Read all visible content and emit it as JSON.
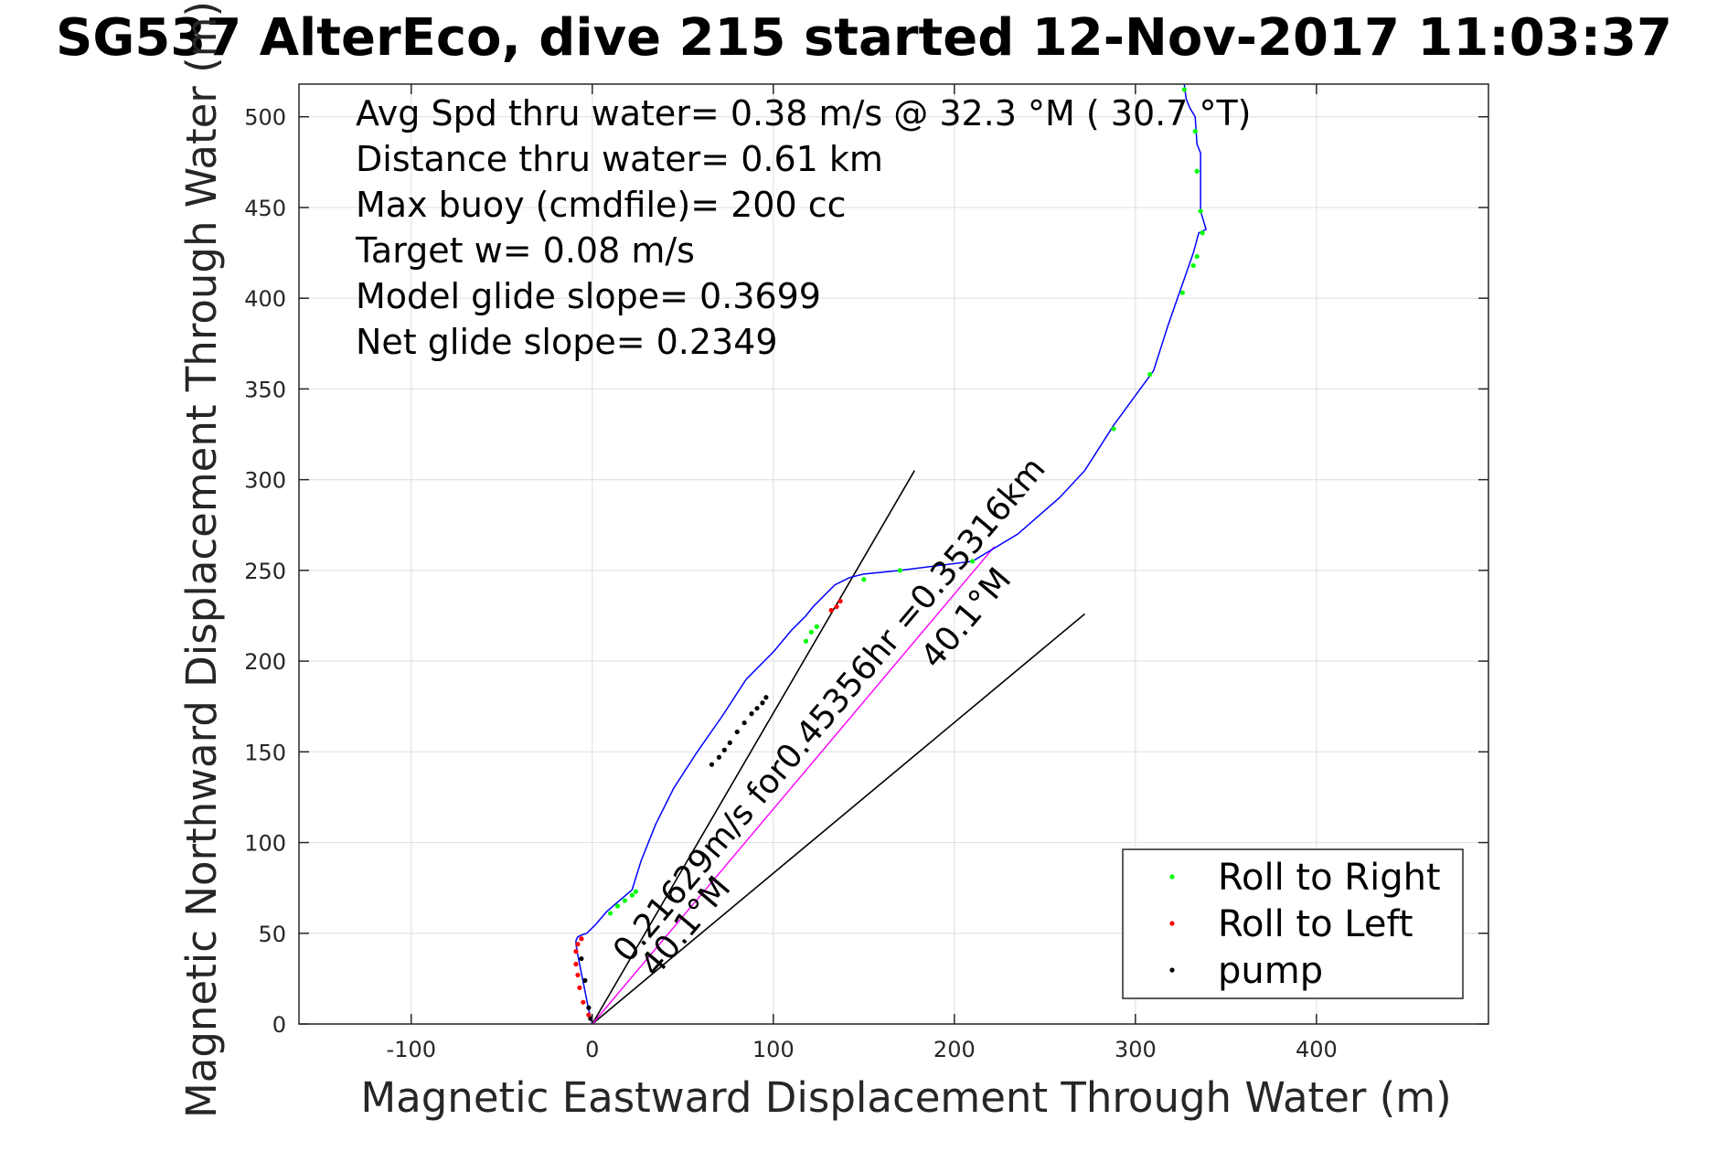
{
  "chart_data": {
    "type": "scatter",
    "title": "SG537 AlterEco, dive 215 started 12-Nov-2017 11:03:37",
    "xlabel": "Magnetic Eastward Displacement Through Water (m)",
    "ylabel": "Magnetic Northward Displacement Through Water (m)",
    "xlim": [
      -162,
      495
    ],
    "ylim": [
      0,
      518
    ],
    "xticks": [
      -100,
      0,
      100,
      200,
      300,
      400
    ],
    "xtick_labels": [
      "-100",
      "0",
      "100",
      "200",
      "300",
      "400"
    ],
    "yticks": [
      0,
      50,
      100,
      150,
      200,
      250,
      300,
      350,
      400,
      450,
      500
    ],
    "ytick_labels": [
      "0",
      "50",
      "100",
      "150",
      "200",
      "250",
      "300",
      "350",
      "400",
      "450",
      "500"
    ],
    "grid": true,
    "info_text": [
      "Avg Spd thru water=  0.38 m/s @  32.3 °M ( 30.7 °T)",
      "Distance thru water=  0.61 km",
      "Max buoy (cmdfile)= 200 cc",
      "Target w= 0.08 m/s",
      "Model glide slope= 0.3699",
      "Net glide slope= 0.2349"
    ],
    "legend": {
      "position": "bottom-right",
      "entries": [
        {
          "label": "Roll to Right",
          "color": "#00ff00"
        },
        {
          "label": "Roll to Left",
          "color": "#ff0000"
        },
        {
          "label": "pump",
          "color": "#000000"
        }
      ]
    },
    "track": {
      "name": "glider track",
      "color": "#0000ff",
      "x": [
        0,
        -2,
        -4,
        -6,
        -8,
        -9,
        -9,
        -8,
        -6,
        -3,
        2,
        8,
        15,
        22,
        27,
        35,
        45,
        58,
        72,
        85,
        100,
        110,
        118,
        122,
        128,
        134,
        142,
        150,
        170,
        210,
        235,
        258,
        272,
        288,
        310,
        318,
        325,
        332,
        335,
        339,
        336,
        336,
        336,
        334,
        333,
        330,
        328,
        327
      ],
      "y": [
        0,
        8,
        18,
        28,
        38,
        44,
        46,
        48,
        49,
        50,
        55,
        62,
        68,
        74,
        90,
        110,
        130,
        150,
        170,
        190,
        205,
        217,
        225,
        230,
        236,
        242,
        246,
        248,
        250,
        255,
        270,
        290,
        305,
        330,
        360,
        385,
        405,
        425,
        436,
        438,
        448,
        465,
        480,
        485,
        500,
        505,
        510,
        518
      ]
    },
    "roll_right": {
      "name": "Roll to Right",
      "color": "#00ff00",
      "x": [
        10,
        14,
        18,
        22,
        24,
        118,
        121,
        124,
        150,
        170,
        210,
        288,
        308,
        326,
        332,
        334,
        337,
        336,
        334,
        333,
        327
      ],
      "y": [
        61,
        65,
        68,
        71,
        73,
        211,
        216,
        219,
        245,
        250,
        255,
        328,
        358,
        403,
        418,
        423,
        436,
        448,
        470,
        492,
        515
      ]
    },
    "roll_left": {
      "name": "Roll to Left",
      "color": "#ff0000",
      "x": [
        -2,
        -5,
        -7,
        -8,
        -9,
        -9,
        -8,
        -6,
        132,
        135,
        137
      ],
      "y": [
        5,
        12,
        20,
        27,
        33,
        40,
        44,
        47,
        228,
        230,
        233
      ]
    },
    "pump": {
      "name": "pump",
      "color": "#000000",
      "x": [
        -1,
        -2,
        -4,
        -6,
        66,
        70,
        73,
        76,
        80,
        84,
        88,
        91,
        94,
        96
      ],
      "y": [
        3,
        9,
        24,
        36,
        143,
        147,
        151,
        155,
        161,
        166,
        171,
        174,
        177,
        180
      ]
    },
    "course_line": {
      "color": "#ff00ff",
      "x": [
        0,
        222
      ],
      "y": [
        0,
        263
      ]
    },
    "heading_lines": [
      {
        "x": [
          0,
          178
        ],
        "y": [
          0,
          305
        ]
      },
      {
        "x": [
          0,
          272
        ],
        "y": [
          0,
          226
        ]
      }
    ],
    "annotations": [
      {
        "text": "0.21629m/s for0.45356hr =0.35316km",
        "x": 20,
        "y": 33,
        "angle_deg": 49.8
      },
      {
        "text": "40.1°M",
        "x": 35,
        "y": 25,
        "angle_deg": 49.8
      },
      {
        "text": "40.1°M",
        "x": 190,
        "y": 195,
        "angle_deg": 49.8
      }
    ]
  }
}
